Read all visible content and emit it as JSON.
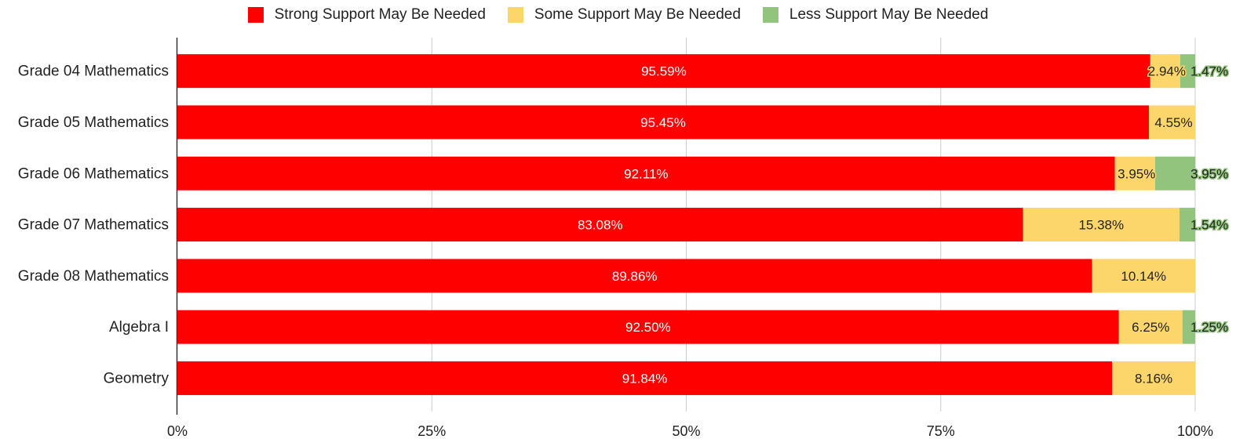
{
  "chart_data": {
    "type": "bar",
    "orientation": "horizontal",
    "stacked": "percent",
    "categories": [
      "Grade 04 Mathematics",
      "Grade 05 Mathematics",
      "Grade 06 Mathematics",
      "Grade 07 Mathematics",
      "Grade 08 Mathematics",
      "Algebra I",
      "Geometry"
    ],
    "series": [
      {
        "name": "Strong Support May Be Needed",
        "color": "#ff0000",
        "label_color": "#ffffff",
        "values": [
          95.59,
          95.45,
          92.11,
          83.08,
          89.86,
          92.5,
          91.84
        ],
        "labels": [
          "95.59%",
          "95.45%",
          "92.11%",
          "83.08%",
          "89.86%",
          "92.50%",
          "91.84%"
        ]
      },
      {
        "name": "Some Support May Be Needed",
        "color": "#fcd66a",
        "label_color": "#222222",
        "values": [
          2.94,
          4.55,
          3.95,
          15.38,
          10.14,
          6.25,
          8.16
        ],
        "labels": [
          "2.94%",
          "4.55%",
          "3.95%",
          "15.38%",
          "10.14%",
          "6.25%",
          "8.16%"
        ]
      },
      {
        "name": "Less Support May Be Needed",
        "color": "#93c47d",
        "label_color": "#222222",
        "values": [
          1.47,
          0,
          3.95,
          1.54,
          0,
          1.25,
          0
        ],
        "labels": [
          "1.47%",
          "",
          "3.95%",
          "1.54%",
          "",
          "1.25%",
          ""
        ]
      }
    ],
    "x_ticks": [
      "0%",
      "25%",
      "50%",
      "75%",
      "100%"
    ],
    "xlim": [
      0,
      100
    ],
    "grid": true,
    "legend_position": "top-center"
  }
}
